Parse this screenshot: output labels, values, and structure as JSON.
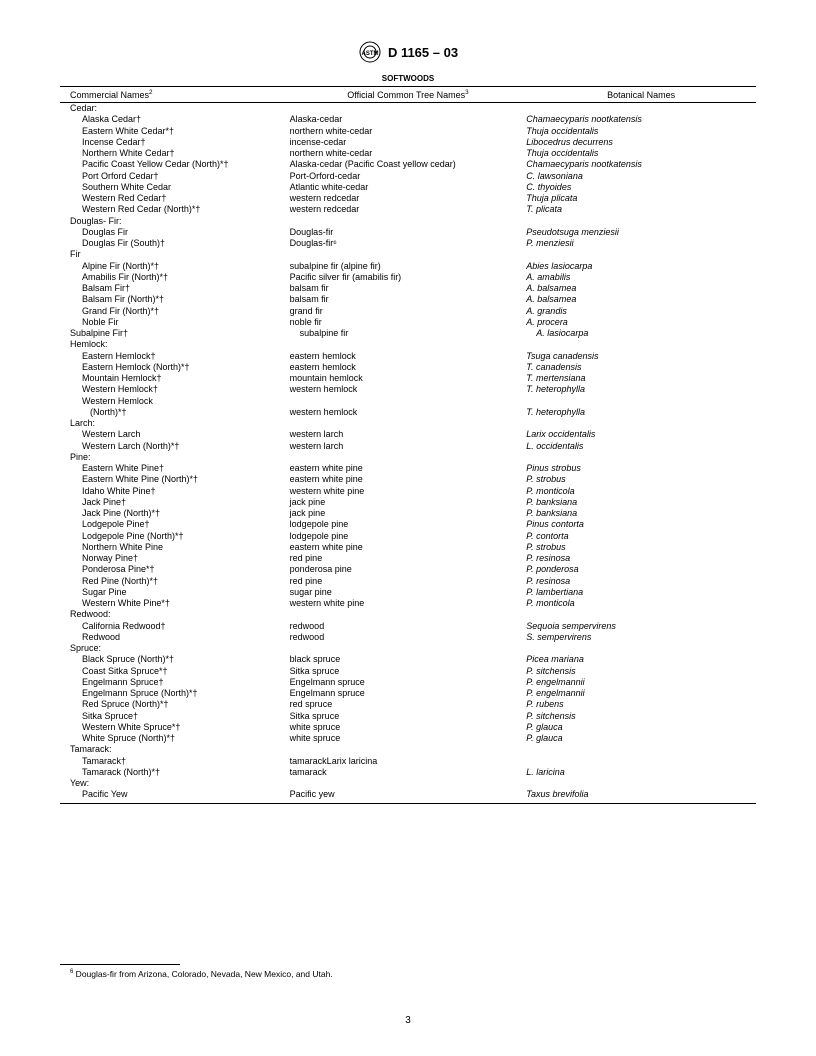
{
  "header": {
    "standard": "D 1165 – 03"
  },
  "table": {
    "title": "SOFTWOODS",
    "columns": [
      "Commercial Names",
      "Official Common Tree Names",
      "Botanical Names"
    ],
    "col_super": [
      "2",
      "3",
      ""
    ],
    "groups": [
      {
        "name": "Cedar:",
        "rows": [
          [
            "Alaska Cedar†",
            "Alaska-cedar",
            "Chamaecyparis nootkatensis"
          ],
          [
            "Eastern White Cedar*†",
            "northern white-cedar",
            "Thuja occidentalis"
          ],
          [
            "Incense Cedar†",
            "incense-cedar",
            "Libocedrus decurrens"
          ],
          [
            "Northern White Cedar†",
            "northern white-cedar",
            "Thuja occidentalis"
          ],
          [
            "Pacific Coast Yellow Cedar (North)*†",
            "Alaska-cedar (Pacific Coast yellow cedar)",
            "Chamaecyparis nootkatensis"
          ],
          [
            "Port Orford Cedar†",
            "Port-Orford-cedar",
            "C. lawsoniana"
          ],
          [
            "Southern White Cedar",
            "Atlantic white-cedar",
            "C. thyoides"
          ],
          [
            "Western Red Cedar†",
            "western redcedar",
            "Thuja plicata"
          ],
          [
            "Western Red Cedar (North)*†",
            "western redcedar",
            "T. plicata"
          ]
        ]
      },
      {
        "name": "Douglas- Fir:",
        "rows": [
          [
            "Douglas Fir",
            "Douglas-fir",
            "Pseudotsuga menziesii"
          ],
          [
            "Douglas Fir (South)†",
            "Douglas-fir⁶",
            "P. menziesii"
          ]
        ]
      },
      {
        "name": "Fir",
        "rows": [
          [
            "Alpine Fir (North)*†",
            "subalpine fir (alpine fir)",
            "Abies lasiocarpa"
          ],
          [
            "Amabilis Fir (North)*†",
            "Pacific silver fir (amabilis fir)",
            "A. amabilis"
          ],
          [
            "Balsam Fir†",
            "balsam fir",
            "A. balsamea"
          ],
          [
            "Balsam Fir (North)*†",
            "balsam fir",
            "A. balsamea"
          ],
          [
            "Grand Fir (North)*†",
            "grand fir",
            "A. grandis"
          ],
          [
            "Noble Fir",
            "noble fir",
            "A. procera"
          ]
        ]
      },
      {
        "name": "Subalpine Fir†",
        "inline_row": [
          "subalpine fir",
          "A. lasiocarpa"
        ]
      },
      {
        "name": "Hemlock:",
        "rows": [
          [
            "Eastern Hemlock†",
            "eastern hemlock",
            "Tsuga canadensis"
          ],
          [
            "Eastern Hemlock (North)*†",
            "eastern hemlock",
            "T. canadensis"
          ],
          [
            "Mountain Hemlock†",
            "mountain hemlock",
            "T. mertensiana"
          ],
          [
            "Western Hemlock†",
            "western hemlock",
            "T. heterophylla"
          ],
          [
            "Western Hemlock",
            "",
            ""
          ],
          [
            "(North)*†",
            "western hemlock",
            "T. heterophylla",
            true
          ]
        ]
      },
      {
        "name": "Larch:",
        "rows": [
          [
            "Western Larch",
            "western larch",
            "Larix occidentalis"
          ],
          [
            "Western Larch (North)*†",
            "western larch",
            "L. occidentalis"
          ]
        ]
      },
      {
        "name": "Pine:",
        "rows": [
          [
            "Eastern White Pine†",
            "eastern white pine",
            "Pinus strobus"
          ],
          [
            "Eastern White Pine (North)*†",
            "eastern white pine",
            "P. strobus"
          ],
          [
            "Idaho White Pine†",
            "western white pine",
            "P. monticola"
          ],
          [
            "Jack Pine†",
            "jack pine",
            "P. banksiana"
          ],
          [
            "Jack Pine (North)*†",
            "jack pine",
            "P. banksiana"
          ],
          [
            "Lodgepole Pine†",
            "lodgepole pine",
            "Pinus contorta"
          ],
          [
            "Lodgepole Pine (North)*†",
            "lodgepole pine",
            "P. contorta"
          ],
          [
            "Northern White Pine",
            "eastern white pine",
            "P. strobus"
          ],
          [
            "Norway Pine†",
            "red pine",
            "P. resinosa"
          ],
          [
            "Ponderosa Pine*†",
            "ponderosa pine",
            "P. ponderosa"
          ],
          [
            "Red Pine (North)*†",
            "red pine",
            "P. resinosa"
          ],
          [
            "Sugar Pine",
            "sugar pine",
            "P. lambertiana"
          ],
          [
            "Western White Pine*†",
            "western white pine",
            "P. monticola"
          ]
        ]
      },
      {
        "name": "Redwood:",
        "rows": [
          [
            "California Redwood†",
            "redwood",
            "Sequoia sempervirens"
          ],
          [
            "Redwood",
            "redwood",
            "S. sempervirens"
          ]
        ]
      },
      {
        "name": "Spruce:",
        "rows": [
          [
            "Black Spruce (North)*†",
            "black spruce",
            "Picea mariana"
          ],
          [
            "Coast Sitka Spruce*†",
            "Sitka spruce",
            "P. sitchensis"
          ],
          [
            "Engelmann Spruce†",
            "Engelmann spruce",
            "P. engelmannii"
          ],
          [
            "Engelmann Spruce (North)*†",
            "Engelmann spruce",
            "P. engelmannii"
          ],
          [
            "Red Spruce (North)*†",
            "red spruce",
            "P. rubens"
          ],
          [
            "Sitka Spruce†",
            "Sitka spruce",
            "P. sitchensis"
          ],
          [
            "Western White Spruce*†",
            "white spruce",
            "P. glauca"
          ],
          [
            "White Spruce (North)*†",
            "white spruce",
            "P. glauca"
          ]
        ]
      },
      {
        "name": "Tamarack:",
        "rows": [
          [
            "Tamarack†",
            "tamarackLarix laricina",
            ""
          ],
          [
            "Tamarack (North)*†",
            "tamarack",
            "L. laricina"
          ]
        ]
      },
      {
        "name": "Yew:",
        "rows": [
          [
            "Pacific Yew",
            "Pacific yew",
            "Taxus brevifolia"
          ]
        ]
      }
    ]
  },
  "footnote": {
    "marker": "6",
    "text": " Douglas-fir from Arizona, Colorado, Nevada, New Mexico, and Utah."
  },
  "page_number": "3"
}
